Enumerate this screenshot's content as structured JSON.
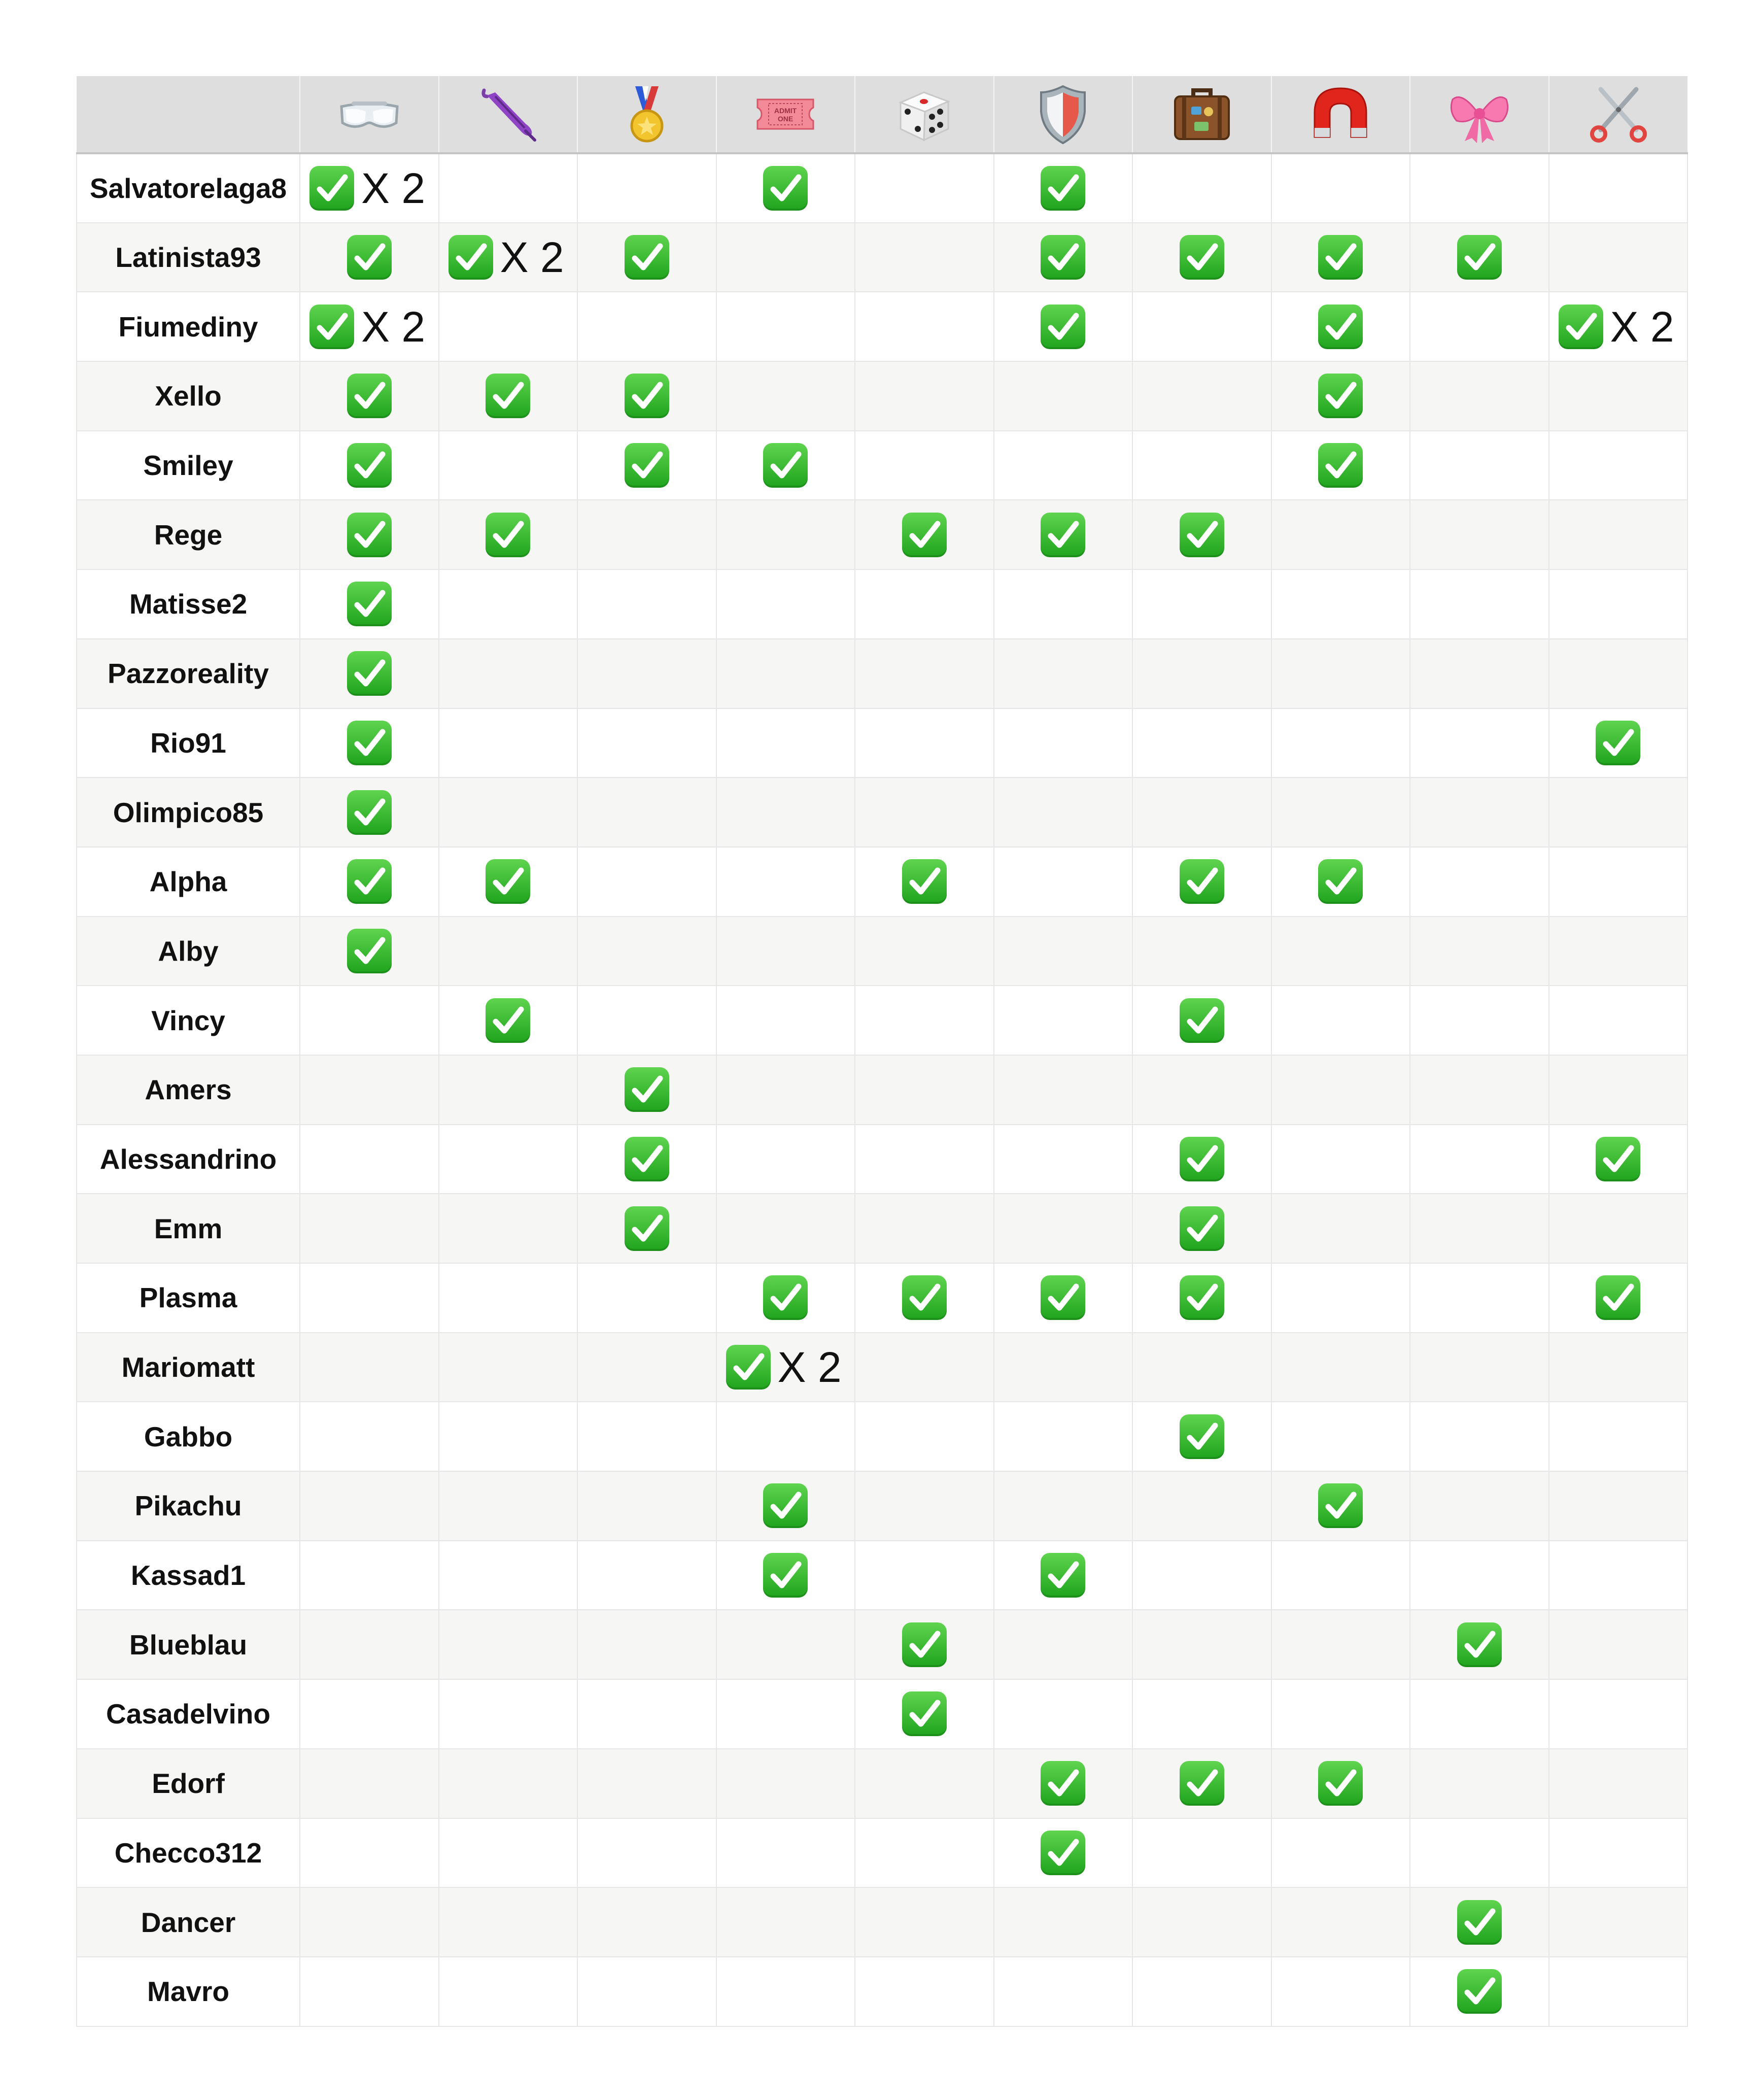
{
  "columns": [
    {
      "key": "goggles",
      "icon": "goggles-icon"
    },
    {
      "key": "umbrella",
      "icon": "closed-umbrella-icon"
    },
    {
      "key": "medal",
      "icon": "sports-medal-icon"
    },
    {
      "key": "ticket",
      "icon": "admission-ticket-icon",
      "icon_text_1": "ADMIT",
      "icon_text_2": "ONE"
    },
    {
      "key": "dice",
      "icon": "game-die-icon"
    },
    {
      "key": "shield",
      "icon": "shield-icon"
    },
    {
      "key": "luggage",
      "icon": "luggage-icon"
    },
    {
      "key": "magnet",
      "icon": "magnet-icon"
    },
    {
      "key": "ribbon",
      "icon": "ribbon-bow-icon"
    },
    {
      "key": "scissors",
      "icon": "scissors-icon"
    }
  ],
  "colors": {
    "check": "#22a91f",
    "header_bg": "#dedede",
    "stripe": "#f6f6f4"
  },
  "rows": [
    {
      "name": "Salvatorelaga8",
      "cells": [
        "X 2",
        "",
        "",
        "✓",
        "",
        "✓",
        "",
        "",
        "",
        ""
      ]
    },
    {
      "name": "Latinista93",
      "cells": [
        "✓",
        "X 2",
        "✓",
        "",
        "",
        "✓",
        "✓",
        "✓",
        "✓",
        ""
      ]
    },
    {
      "name": "Fiumediny",
      "cells": [
        "X 2",
        "",
        "",
        "",
        "",
        "✓",
        "",
        "✓",
        "",
        "X 2"
      ]
    },
    {
      "name": "Xello",
      "cells": [
        "✓",
        "✓",
        "✓",
        "",
        "",
        "",
        "",
        "✓",
        "",
        ""
      ]
    },
    {
      "name": "Smiley",
      "cells": [
        "✓",
        "",
        "✓",
        "✓",
        "",
        "",
        "",
        "✓",
        "",
        ""
      ]
    },
    {
      "name": "Rege",
      "cells": [
        "✓",
        "✓",
        "",
        "",
        "✓",
        "✓",
        "✓",
        "",
        "",
        ""
      ]
    },
    {
      "name": "Matisse2",
      "cells": [
        "✓",
        "",
        "",
        "",
        "",
        "",
        "",
        "",
        "",
        ""
      ]
    },
    {
      "name": "Pazzoreality",
      "cells": [
        "✓",
        "",
        "",
        "",
        "",
        "",
        "",
        "",
        "",
        ""
      ]
    },
    {
      "name": "Rio91",
      "cells": [
        "✓",
        "",
        "",
        "",
        "",
        "",
        "",
        "",
        "",
        "✓"
      ]
    },
    {
      "name": "Olimpico85",
      "cells": [
        "✓",
        "",
        "",
        "",
        "",
        "",
        "",
        "",
        "",
        ""
      ]
    },
    {
      "name": "Alpha",
      "cells": [
        "✓",
        "✓",
        "",
        "",
        "✓",
        "",
        "✓",
        "✓",
        "",
        ""
      ]
    },
    {
      "name": "Alby",
      "cells": [
        "✓",
        "",
        "",
        "",
        "",
        "",
        "",
        "",
        "",
        ""
      ]
    },
    {
      "name": "Vincy",
      "cells": [
        "",
        "✓",
        "",
        "",
        "",
        "",
        "✓",
        "",
        "",
        ""
      ]
    },
    {
      "name": "Amers",
      "cells": [
        "",
        "",
        "✓",
        "",
        "",
        "",
        "",
        "",
        "",
        ""
      ]
    },
    {
      "name": "Alessandrino",
      "cells": [
        "",
        "",
        "✓",
        "",
        "",
        "",
        "✓",
        "",
        "",
        "✓"
      ]
    },
    {
      "name": "Emm",
      "cells": [
        "",
        "",
        "✓",
        "",
        "",
        "",
        "✓",
        "",
        "",
        ""
      ]
    },
    {
      "name": "Plasma",
      "cells": [
        "",
        "",
        "",
        "✓",
        "✓",
        "✓",
        "✓",
        "",
        "",
        "✓"
      ]
    },
    {
      "name": "Mariomatt",
      "cells": [
        "",
        "",
        "",
        "X 2",
        "",
        "",
        "",
        "",
        "",
        ""
      ]
    },
    {
      "name": "Gabbo",
      "cells": [
        "",
        "",
        "",
        "",
        "",
        "",
        "✓",
        "",
        "",
        ""
      ]
    },
    {
      "name": "Pikachu",
      "cells": [
        "",
        "",
        "",
        "✓",
        "",
        "",
        "",
        "✓",
        "",
        ""
      ]
    },
    {
      "name": "Kassad1",
      "cells": [
        "",
        "",
        "",
        "✓",
        "",
        "✓",
        "",
        "",
        "",
        ""
      ]
    },
    {
      "name": "Blueblau",
      "cells": [
        "",
        "",
        "",
        "",
        "✓",
        "",
        "",
        "",
        "✓",
        ""
      ]
    },
    {
      "name": "Casadelvino",
      "cells": [
        "",
        "",
        "",
        "",
        "✓",
        "",
        "",
        "",
        "",
        ""
      ]
    },
    {
      "name": "Edorf",
      "cells": [
        "",
        "",
        "",
        "",
        "",
        "✓",
        "✓",
        "✓",
        "",
        ""
      ]
    },
    {
      "name": "Checco312",
      "cells": [
        "",
        "",
        "",
        "",
        "",
        "✓",
        "",
        "",
        "",
        ""
      ]
    },
    {
      "name": "Dancer",
      "cells": [
        "",
        "",
        "",
        "",
        "",
        "",
        "",
        "",
        "✓",
        ""
      ]
    },
    {
      "name": "Mavro",
      "cells": [
        "",
        "",
        "",
        "",
        "",
        "",
        "",
        "",
        "✓",
        ""
      ]
    }
  ]
}
